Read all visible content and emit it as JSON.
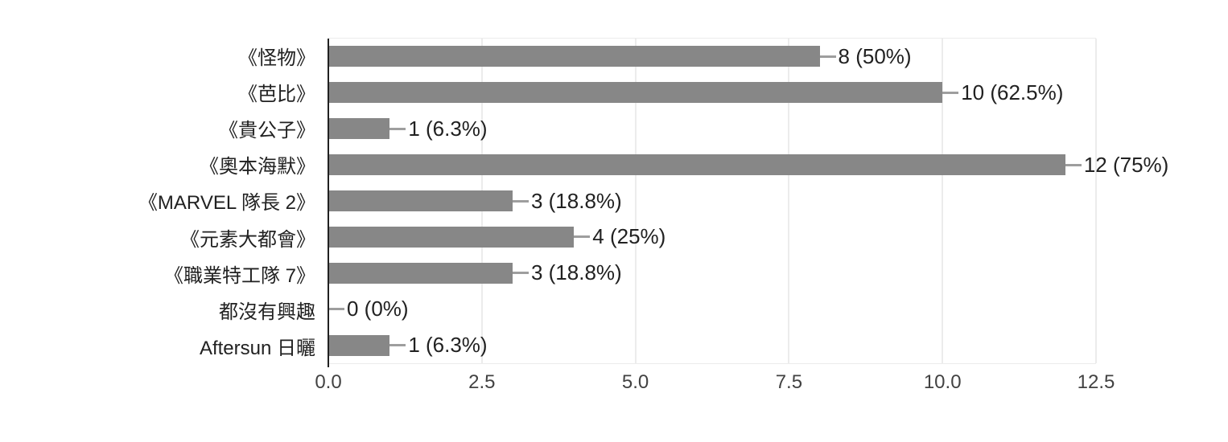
{
  "chart_data": {
    "type": "bar",
    "orientation": "horizontal",
    "categories": [
      "《怪物》",
      "《芭比》",
      "《貴公子》",
      "《奧本海默》",
      "《MARVEL 隊長 2》",
      "《元素大都會》",
      "《職業特工隊 7》",
      "都沒有興趣",
      "Aftersun 日曬"
    ],
    "values": [
      8,
      10,
      1,
      12,
      3,
      4,
      3,
      0,
      1
    ],
    "value_labels": [
      "8 (50%)",
      "10 (62.5%)",
      "1 (6.3%)",
      "12 (75%)",
      "3 (18.8%)",
      "4 (25%)",
      "3 (18.8%)",
      "0 (0%)",
      "1 (6.3%)"
    ],
    "xlim": [
      0,
      12.5
    ],
    "x_ticks": [
      0.0,
      2.5,
      5.0,
      7.5,
      10.0,
      12.5
    ],
    "x_tick_labels": [
      "0.0",
      "2.5",
      "5.0",
      "7.5",
      "10.0",
      "12.5"
    ],
    "grid": true,
    "legend": "none",
    "title": "",
    "colors": {
      "bar": "#878787",
      "axis_line": "#212121",
      "gridline": "#ececec",
      "label_text": "#212121",
      "tick_text": "#424242",
      "connector": "#9e9e9e",
      "background": "#ffffff"
    }
  }
}
